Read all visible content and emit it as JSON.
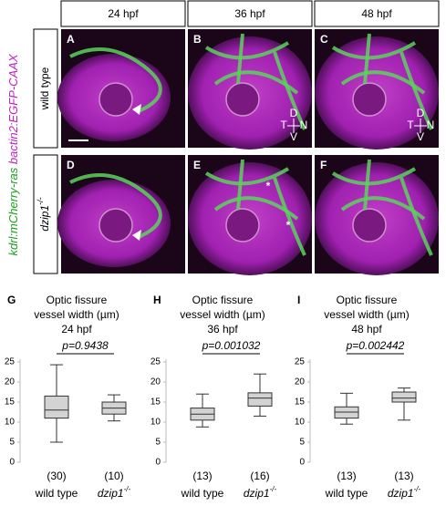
{
  "figure": {
    "column_headers": [
      "24 hpf",
      "36 hpf",
      "48 hpf"
    ],
    "reporters": [
      "kdrl:mCherry-ras",
      "bactin2:EGFP-CAAX"
    ],
    "row_labels": [
      "wild type",
      "dzip1"
    ],
    "genotype_superscript": "-/-",
    "panel_letters": [
      "A",
      "B",
      "C",
      "D",
      "E",
      "F"
    ],
    "orientation": [
      "D",
      "V",
      "T",
      "N"
    ],
    "asterisk": "*"
  },
  "chart_data": [
    {
      "type": "box",
      "letter": "G",
      "title": [
        "Optic fissure",
        "vessel width (µm)",
        "24 hpf"
      ],
      "pvalue": "p=0.9438",
      "categories": [
        "wild type",
        "dzip1"
      ],
      "n": [
        30,
        10
      ],
      "n_labels": [
        "(30)",
        "(10)"
      ],
      "boxes": [
        {
          "min": 5,
          "q1": 11,
          "median": 13,
          "q3": 16.5,
          "max": 24.3
        },
        {
          "min": 10.3,
          "q1": 12,
          "median": 13.5,
          "q3": 15,
          "max": 16.8
        }
      ],
      "color": "#d3d3d3",
      "ylim": [
        0,
        25
      ],
      "yticks": [
        0,
        5,
        10,
        15,
        20,
        25
      ]
    },
    {
      "type": "box",
      "letter": "H",
      "title": [
        "Optic fissure",
        "vessel width (µm)",
        "36 hpf"
      ],
      "pvalue": "p=0.001032",
      "categories": [
        "wild type",
        "dzip1"
      ],
      "n": [
        13,
        16
      ],
      "n_labels": [
        "(13)",
        "(16)"
      ],
      "boxes": [
        {
          "min": 8.8,
          "q1": 10.5,
          "median": 12,
          "q3": 13.5,
          "max": 17
        },
        {
          "min": 11.5,
          "q1": 14,
          "median": 16,
          "q3": 17.3,
          "max": 22
        }
      ],
      "color": "#d3d3d3",
      "ylim": [
        0,
        25
      ],
      "yticks": [
        0,
        5,
        10,
        15,
        20,
        25
      ]
    },
    {
      "type": "box",
      "letter": "I",
      "title": [
        "Optic fissure",
        "vessel width (µm)",
        "48 hpf"
      ],
      "pvalue": "p=0.002442",
      "categories": [
        "wild type",
        "dzip1"
      ],
      "n": [
        13,
        13
      ],
      "n_labels": [
        "(13)",
        "(13)"
      ],
      "boxes": [
        {
          "min": 9.5,
          "q1": 11,
          "median": 12.5,
          "q3": 13.8,
          "max": 17.2
        },
        {
          "min": 10.5,
          "q1": 15,
          "median": 16,
          "q3": 17.5,
          "max": 18.5
        }
      ],
      "color": "#d3d3d3",
      "ylim": [
        0,
        25
      ],
      "yticks": [
        0,
        5,
        10,
        15,
        20,
        25
      ]
    }
  ]
}
